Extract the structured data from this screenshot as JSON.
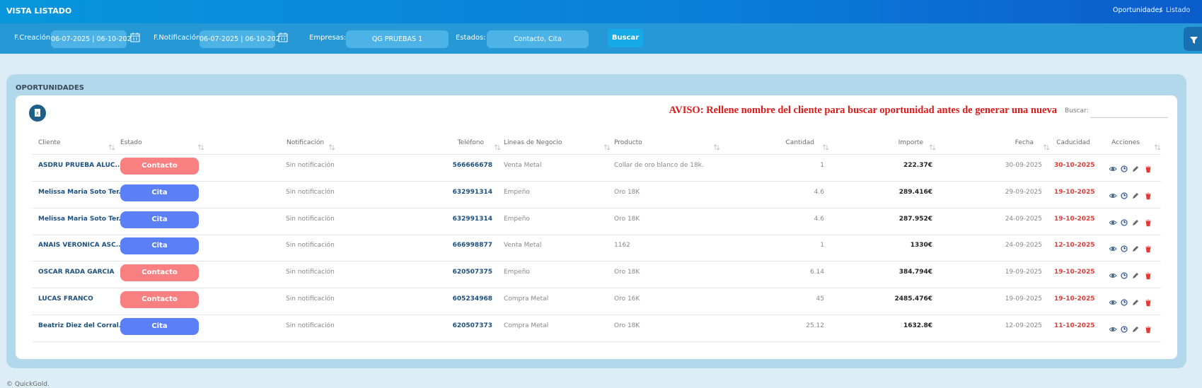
{
  "header": {
    "title": "VISTA LISTADO",
    "breadcrumb": [
      "Oportunidades",
      "Listado"
    ],
    "separator": "/"
  },
  "filters": [
    {
      "label": "F.Creación:",
      "value": "06-07-2025 | 06-10-202"
    },
    {
      "label": "F.Notificación:",
      "value": "06-07-2025 | 06-10-202"
    },
    {
      "label": "Empresas:",
      "value": "QG PRUEBAS 1"
    },
    {
      "label": "Estados:",
      "value": "Contacto, Cita"
    }
  ],
  "search_button": "Buscar",
  "panel": {
    "title": "OPORTUNIDADES",
    "notice": "AVISO: Rellene nombre del cliente para buscar oportunidad antes de generar una nueva",
    "search_label": "Buscar:"
  },
  "table": {
    "columns": [
      "Cliente",
      "Estado",
      "Notificación",
      "Teléfono",
      "Lineas de Negocio",
      "Producto",
      "Cantidad",
      "Importe",
      "Fecha",
      "Caducidad",
      "Acciones"
    ],
    "badge_colors": {
      "Contacto": "#f88080",
      "Cita": "#5b7ff5"
    },
    "rows": [
      [
        "ASDRU PRUEBA ALUC...",
        "Contacto",
        "Sin notificación",
        "566666678",
        "Venta Metal",
        "Collar de oro blanco de 18k.",
        "1",
        "222.37€",
        "30-09-2025",
        "30-10-2025"
      ],
      [
        "Melissa Maria Soto Ter...",
        "Cita",
        "Sin notificación",
        "632991314",
        "Empeño",
        "Oro 18K",
        "4.6",
        "289.416€",
        "29-09-2025",
        "19-10-2025"
      ],
      [
        "Melissa Maria Soto Ter...",
        "Cita",
        "Sin notificación",
        "632991314",
        "Empeño",
        "Oro 18K",
        "4.6",
        "287.952€",
        "24-09-2025",
        "19-10-2025"
      ],
      [
        "ANAIS VERONICA ASC...",
        "Cita",
        "Sin notificación",
        "666998877",
        "Venta Metal",
        "1162",
        "1",
        "1330€",
        "24-09-2025",
        "12-10-2025"
      ],
      [
        "OSCAR RADA GARCIA",
        "Contacto",
        "Sin notificación",
        "620507375",
        "Empeño",
        "Oro 18K",
        "6.14",
        "384.794€",
        "19-09-2025",
        "19-10-2025"
      ],
      [
        "LUCAS FRANCO",
        "Contacto",
        "Sin notificación",
        "605234968",
        "Compra Metal",
        "Oro 16K",
        "45",
        "2485.476€",
        "19-09-2025",
        "19-10-2025"
      ],
      [
        "Beatriz Diez del Corral...",
        "Cita",
        "Sin notificación",
        "620507373",
        "Compra Metal",
        "Oro 18K",
        "25.12",
        "1632.8€",
        "12-09-2025",
        "11-10-2025"
      ]
    ]
  },
  "footer": "© QuickGold."
}
